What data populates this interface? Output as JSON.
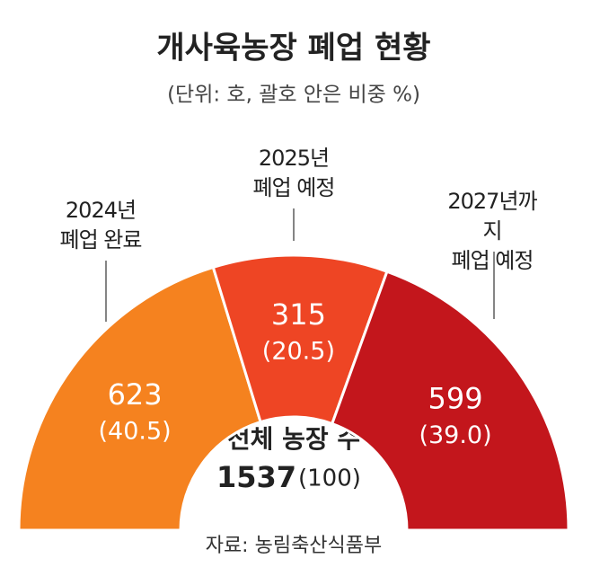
{
  "chart_data": {
    "type": "pie",
    "title": "개사육농장 폐업 현황",
    "subtitle": "(단위: 호, 괄호 안은 비중 %)",
    "categories": [
      "2024년\n폐업 완료",
      "2025년\n폐업 예정",
      "2027년까지\n폐업 예정"
    ],
    "values": [
      623,
      315,
      599
    ],
    "shares": [
      40.5,
      20.5,
      39.0
    ],
    "share_labels": [
      "(40.5)",
      "(20.5)",
      "(39.0)"
    ],
    "colors": [
      "#f5821f",
      "#ee4524",
      "#c3161c"
    ],
    "center_label": "전체 농장 수",
    "total": 1537,
    "total_share_label": "(100)",
    "source": "자료: 농림축산식품부"
  }
}
